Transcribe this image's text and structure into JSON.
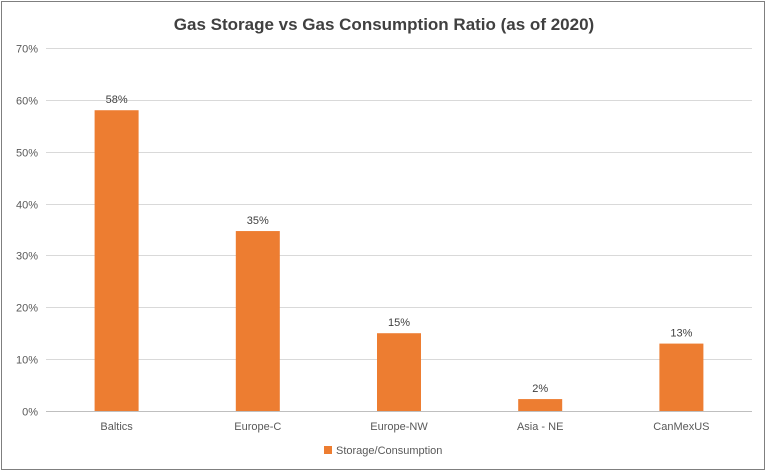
{
  "chart_data": {
    "type": "bar",
    "title": "Gas Storage vs Gas Consumption Ratio (as of 2020)",
    "xlabel": "",
    "ylabel": "",
    "categories": [
      "Baltics",
      "Europe-C",
      "Europe-NW",
      "Asia - NE",
      "CanMexUS"
    ],
    "series": [
      {
        "name": "Storage/Consumption",
        "values": [
          0.58,
          0.347,
          0.15,
          0.023,
          0.13
        ],
        "data_labels": [
          "58%",
          "35%",
          "15%",
          "2%",
          "13%"
        ],
        "color": "#ed7d31"
      }
    ],
    "ylim": [
      0,
      0.7
    ],
    "yticks": [
      0,
      0.1,
      0.2,
      0.3,
      0.4,
      0.5,
      0.6,
      0.7
    ],
    "ytick_labels": [
      "0%",
      "10%",
      "20%",
      "30%",
      "40%",
      "50%",
      "60%",
      "70%"
    ],
    "grid": true,
    "legend_position": "bottom"
  }
}
